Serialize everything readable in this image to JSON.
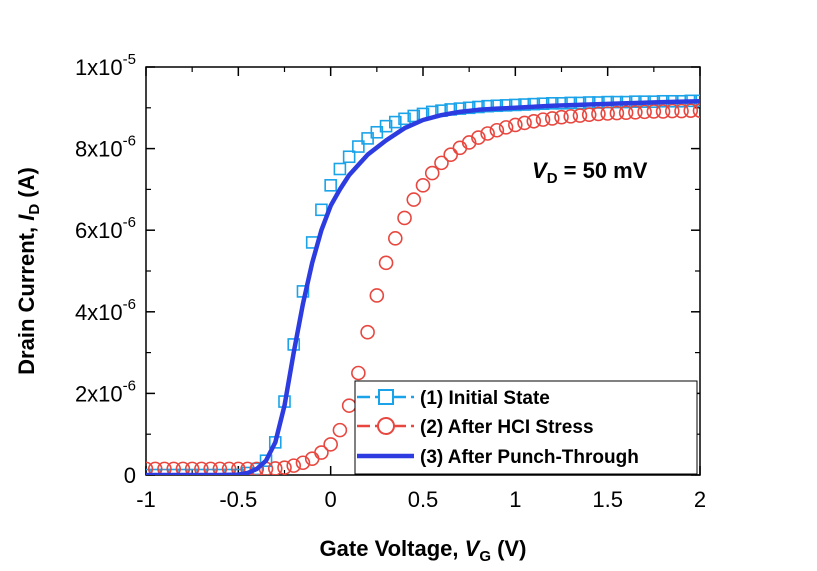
{
  "chart_data": {
    "type": "scatter",
    "xlabel": {
      "main": "Gate Voltage, ",
      "var": "V",
      "sub": "G",
      "unit": " (V)"
    },
    "ylabel": {
      "main": "Drain Current, ",
      "var": "I",
      "sub": "D",
      "unit": " (A)"
    },
    "xlim": [
      -1,
      2
    ],
    "ylim": [
      0,
      1e-05
    ],
    "x_ticks": [
      -1,
      -0.5,
      0,
      0.5,
      1,
      1.5,
      2
    ],
    "x_tick_labels": [
      "-1",
      "-0.5",
      "0",
      "0.5",
      "1",
      "1.5",
      "2"
    ],
    "y_ticks": [
      0,
      2e-06,
      4e-06,
      6e-06,
      8e-06,
      1e-05
    ],
    "y_tick_labels": [
      {
        "mant": "0",
        "exp": ""
      },
      {
        "mant": "2x10",
        "exp": "-6"
      },
      {
        "mant": "4x10",
        "exp": "-6"
      },
      {
        "mant": "6x10",
        "exp": "-6"
      },
      {
        "mant": "8x10",
        "exp": "-6"
      },
      {
        "mant": "1x10",
        "exp": "-5"
      }
    ],
    "annotation": {
      "var": "V",
      "sub": "D",
      "text": " = 50 mV"
    },
    "grid": false,
    "legend_position": "bottom-right",
    "series": [
      {
        "name": "(1) Initial State",
        "marker": "square",
        "color": "#1aa3e8",
        "x": [
          -1.0,
          -0.95,
          -0.9,
          -0.85,
          -0.8,
          -0.75,
          -0.7,
          -0.65,
          -0.6,
          -0.55,
          -0.5,
          -0.45,
          -0.4,
          -0.35,
          -0.3,
          -0.25,
          -0.2,
          -0.15,
          -0.1,
          -0.05,
          0.0,
          0.05,
          0.1,
          0.15,
          0.2,
          0.25,
          0.3,
          0.35,
          0.4,
          0.45,
          0.5,
          0.55,
          0.6,
          0.65,
          0.7,
          0.75,
          0.8,
          0.85,
          0.9,
          0.95,
          1.0,
          1.05,
          1.1,
          1.15,
          1.2,
          1.25,
          1.3,
          1.35,
          1.4,
          1.45,
          1.5,
          1.55,
          1.6,
          1.65,
          1.7,
          1.75,
          1.8,
          1.85,
          1.9,
          1.95,
          2.0
        ],
        "y": [
          0,
          0,
          0,
          0,
          0,
          0,
          0,
          0,
          0,
          0,
          0,
          5e-08,
          1.5e-07,
          3.5e-07,
          8e-07,
          1.8e-06,
          3.2e-06,
          4.5e-06,
          5.7e-06,
          6.5e-06,
          7.1e-06,
          7.5e-06,
          7.8e-06,
          8.05e-06,
          8.25e-06,
          8.4e-06,
          8.55e-06,
          8.65e-06,
          8.73e-06,
          8.8e-06,
          8.85e-06,
          8.9e-06,
          8.93e-06,
          8.96e-06,
          8.98e-06,
          9e-06,
          9.02e-06,
          9.04e-06,
          9.05e-06,
          9.06e-06,
          9.07e-06,
          9.08e-06,
          9.09e-06,
          9.1e-06,
          9.11e-06,
          9.11e-06,
          9.12e-06,
          9.12e-06,
          9.13e-06,
          9.13e-06,
          9.14e-06,
          9.14e-06,
          9.14e-06,
          9.15e-06,
          9.15e-06,
          9.15e-06,
          9.16e-06,
          9.16e-06,
          9.16e-06,
          9.17e-06,
          9.17e-06
        ]
      },
      {
        "name": "(2) After HCI Stress",
        "marker": "circle",
        "color": "#e8473f",
        "x": [
          -1.0,
          -0.95,
          -0.9,
          -0.85,
          -0.8,
          -0.75,
          -0.7,
          -0.65,
          -0.6,
          -0.55,
          -0.5,
          -0.45,
          -0.4,
          -0.35,
          -0.3,
          -0.25,
          -0.2,
          -0.15,
          -0.1,
          -0.05,
          0.0,
          0.05,
          0.1,
          0.15,
          0.2,
          0.25,
          0.3,
          0.35,
          0.4,
          0.45,
          0.5,
          0.55,
          0.6,
          0.65,
          0.7,
          0.75,
          0.8,
          0.85,
          0.9,
          0.95,
          1.0,
          1.05,
          1.1,
          1.15,
          1.2,
          1.25,
          1.3,
          1.35,
          1.4,
          1.45,
          1.5,
          1.55,
          1.6,
          1.65,
          1.7,
          1.75,
          1.8,
          1.85,
          1.9,
          1.95,
          2.0
        ],
        "y": [
          1.5e-07,
          1.5e-07,
          1.5e-07,
          1.5e-07,
          1.5e-07,
          1.5e-07,
          1.5e-07,
          1.5e-07,
          1.5e-07,
          1.5e-07,
          1.5e-07,
          1.5e-07,
          1.5e-07,
          1.5e-07,
          1.6e-07,
          1.8e-07,
          2.3e-07,
          3e-07,
          4e-07,
          5.5e-07,
          7.5e-07,
          1.1e-06,
          1.7e-06,
          2.5e-06,
          3.5e-06,
          4.4e-06,
          5.2e-06,
          5.8e-06,
          6.3e-06,
          6.75e-06,
          7.1e-06,
          7.4e-06,
          7.65e-06,
          7.85e-06,
          8.02e-06,
          8.15e-06,
          8.27e-06,
          8.37e-06,
          8.45e-06,
          8.52e-06,
          8.58e-06,
          8.63e-06,
          8.67e-06,
          8.71e-06,
          8.74e-06,
          8.77e-06,
          8.79e-06,
          8.81e-06,
          8.83e-06,
          8.85e-06,
          8.86e-06,
          8.87e-06,
          8.88e-06,
          8.89e-06,
          8.9e-06,
          8.91e-06,
          8.91e-06,
          8.92e-06,
          8.92e-06,
          8.93e-06,
          8.93e-06
        ]
      },
      {
        "name": "(3) After Punch-Through",
        "marker": "line",
        "color": "#2d3ce0",
        "x": [
          -1.0,
          -0.9,
          -0.8,
          -0.7,
          -0.6,
          -0.5,
          -0.45,
          -0.4,
          -0.35,
          -0.3,
          -0.25,
          -0.2,
          -0.15,
          -0.1,
          -0.05,
          0.0,
          0.05,
          0.1,
          0.15,
          0.2,
          0.3,
          0.4,
          0.5,
          0.6,
          0.7,
          0.8,
          0.9,
          1.0,
          1.2,
          1.4,
          1.6,
          1.8,
          2.0
        ],
        "y": [
          0,
          0,
          0,
          0,
          0,
          1e-08,
          5e-08,
          1.5e-07,
          3.5e-07,
          8e-07,
          1.7e-06,
          3e-06,
          4.2e-06,
          5.2e-06,
          6e-06,
          6.6e-06,
          7e-06,
          7.35e-06,
          7.6e-06,
          7.85e-06,
          8.2e-06,
          8.5e-06,
          8.7e-06,
          8.82e-06,
          8.9e-06,
          8.95e-06,
          8.98e-06,
          9e-06,
          9.05e-06,
          9.08e-06,
          9.11e-06,
          9.14e-06,
          9.16e-06
        ]
      }
    ]
  }
}
